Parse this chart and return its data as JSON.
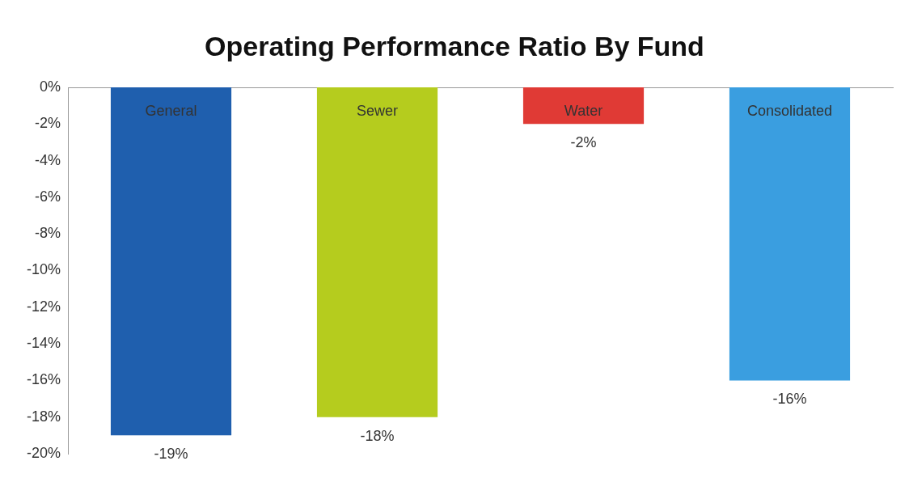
{
  "chart_data": {
    "type": "bar",
    "title": "Operating Performance Ratio By Fund",
    "categories": [
      "General",
      "Sewer",
      "Water",
      "Consolidated"
    ],
    "values": [
      -19,
      -18,
      -2,
      -16
    ],
    "colors": [
      "#1f5fae",
      "#b5cc1e",
      "#e03a35",
      "#3a9ee0"
    ],
    "value_labels": [
      "-19%",
      "-18%",
      "-2%",
      "-16%"
    ],
    "ylim": [
      -20,
      0
    ],
    "yticks": [
      {
        "value": 0,
        "label": "0%"
      },
      {
        "value": -2,
        "label": "-2%"
      },
      {
        "value": -4,
        "label": "-4%"
      },
      {
        "value": -6,
        "label": "-6%"
      },
      {
        "value": -8,
        "label": "-8%"
      },
      {
        "value": -10,
        "label": "-10%"
      },
      {
        "value": -12,
        "label": "-12%"
      },
      {
        "value": -14,
        "label": "-14%"
      },
      {
        "value": -16,
        "label": "-16%"
      },
      {
        "value": -18,
        "label": "-18%"
      },
      {
        "value": -20,
        "label": "-20%"
      }
    ],
    "grid": false,
    "legend": false
  }
}
